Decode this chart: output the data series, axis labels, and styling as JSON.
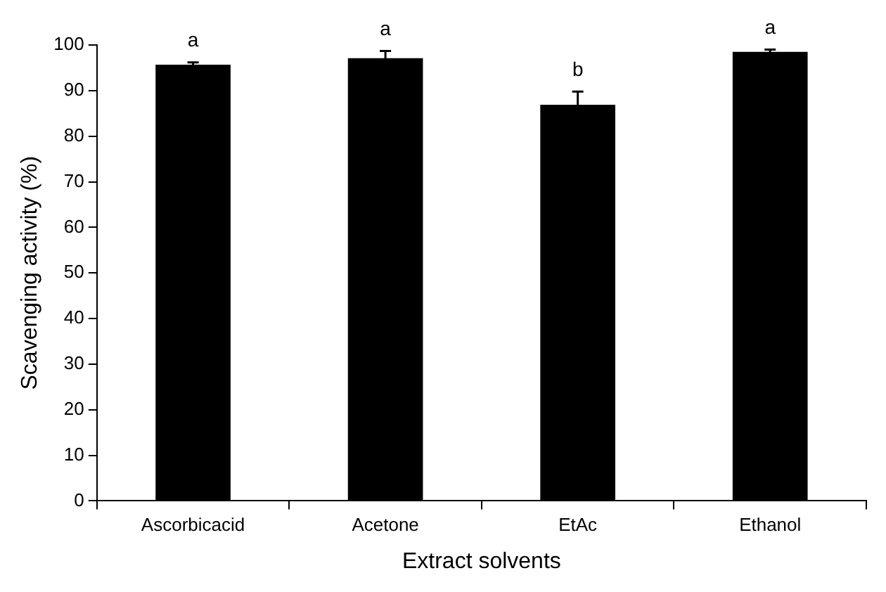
{
  "chart_data": {
    "type": "bar",
    "xlabel": "Extract solvents",
    "ylabel": "Scavenging activity (%)",
    "categories": [
      "Ascorbicacid",
      "Acetone",
      "EtAc",
      "Ethanol"
    ],
    "values": [
      95.7,
      97.1,
      86.9,
      98.5
    ],
    "errors": [
      0.5,
      1.6,
      2.9,
      0.5
    ],
    "color": "#000000",
    "ylim": [
      0,
      100
    ],
    "yticks": [
      0,
      10,
      20,
      30,
      40,
      50,
      60,
      70,
      80,
      90,
      100
    ],
    "annotations": [
      {
        "text": "a",
        "x": "Ascorbicacid",
        "y": 96.2
      },
      {
        "text": "a",
        "x": "Acetone",
        "y": 98.7
      },
      {
        "text": "b",
        "x": "EtAc",
        "y": 89.8
      },
      {
        "text": "a",
        "x": "Ethanol",
        "y": 99
      }
    ],
    "grid": false,
    "legend": false
  }
}
